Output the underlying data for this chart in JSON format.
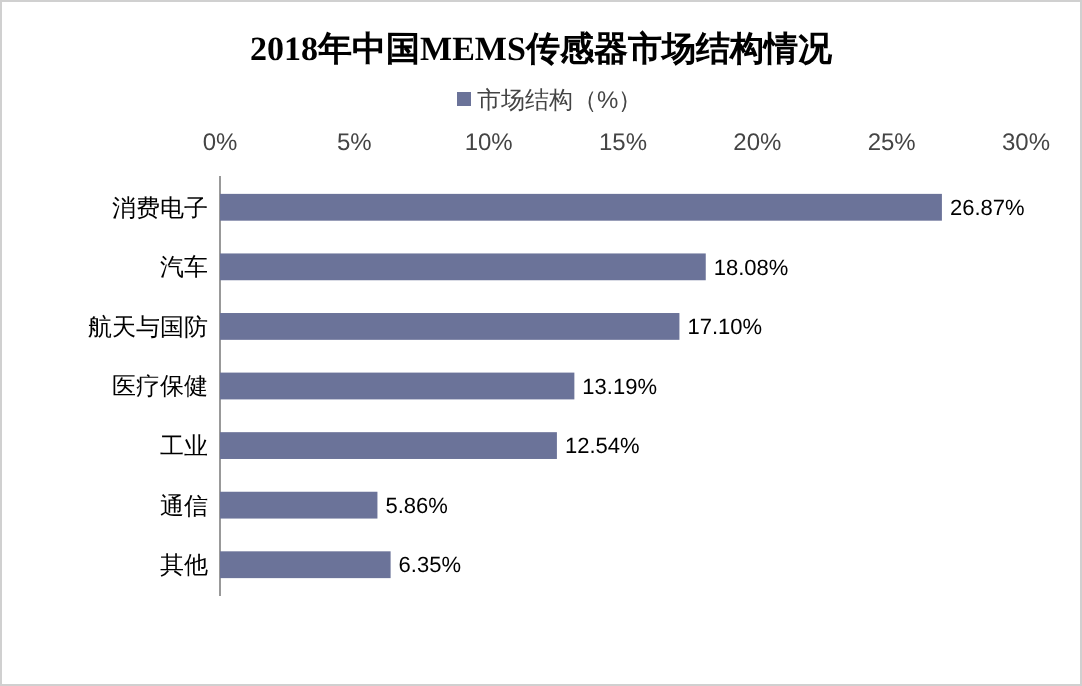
{
  "chart_data": {
    "type": "bar",
    "orientation": "horizontal",
    "title": "2018年中国MEMS传感器市场结构情况",
    "categories": [
      "消费电子",
      "汽车",
      "航天与国防",
      "医疗保健",
      "工业",
      "通信",
      "其他"
    ],
    "series": [
      {
        "name": "市场结构（%）",
        "color": "#6b7399",
        "values": [
          26.87,
          18.08,
          17.1,
          13.19,
          12.54,
          5.86,
          6.35
        ],
        "value_labels": [
          "26.87%",
          "18.08%",
          "17.10%",
          "13.19%",
          "12.54%",
          "5.86%",
          "6.35%"
        ]
      }
    ],
    "xlim": [
      0,
      30
    ],
    "xticks": [
      {
        "value": 0,
        "label": "0%"
      },
      {
        "value": 5,
        "label": "5%"
      },
      {
        "value": 10,
        "label": "10%"
      },
      {
        "value": 15,
        "label": "15%"
      },
      {
        "value": 20,
        "label": "20%"
      },
      {
        "value": 25,
        "label": "25%"
      },
      {
        "value": 30,
        "label": "30%"
      }
    ],
    "legend": "top",
    "grid": false
  }
}
